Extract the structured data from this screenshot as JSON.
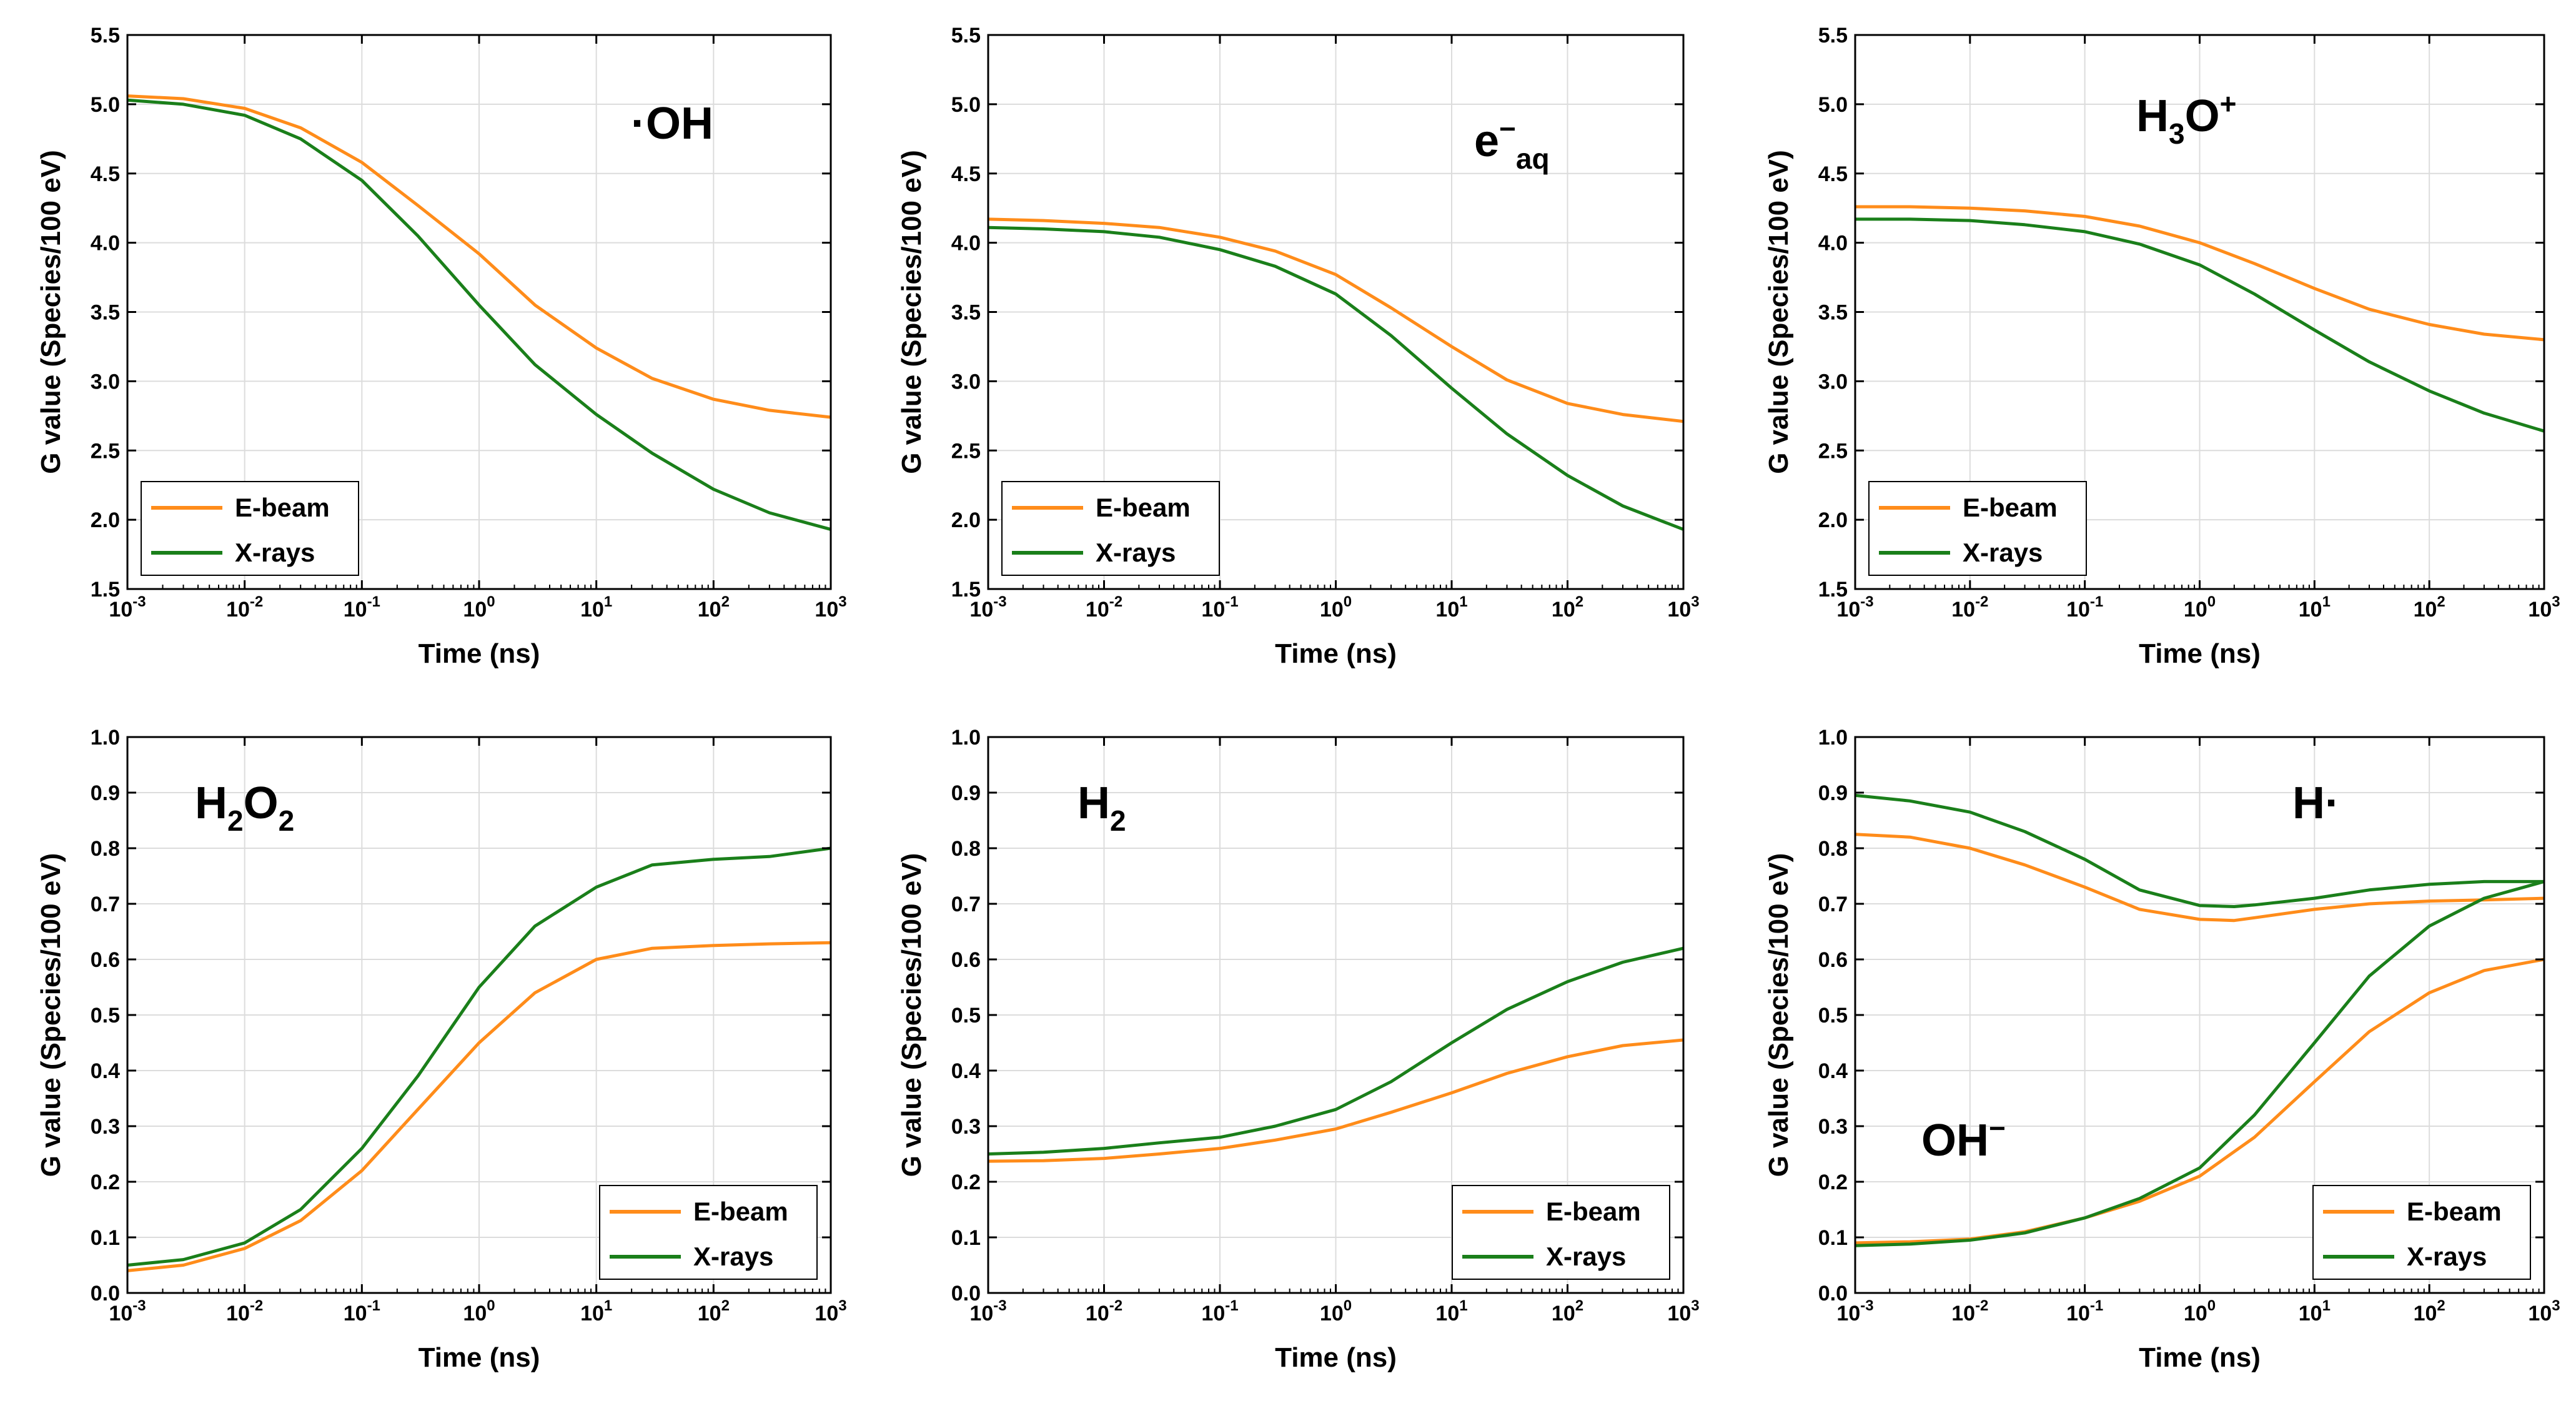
{
  "colors": {
    "ebeam": "#ff8c1a",
    "xrays": "#1a7f1a",
    "grid": "#dcdcdc",
    "axis": "#000000"
  },
  "chart_data": [
    {
      "type": "line",
      "title": "·OH",
      "label_parts": [
        {
          "t": "·OH",
          "s": "n"
        }
      ],
      "xlabel": "Time (ns)",
      "ylabel": "G value (Species/100 eV)",
      "xscale": "log",
      "xlim": [
        0.001,
        1000
      ],
      "ylim": [
        1.5,
        5.5
      ],
      "yticks": [
        "1.5",
        "2.0",
        "2.5",
        "3.0",
        "3.5",
        "4.0",
        "4.5",
        "5.0",
        "5.5"
      ],
      "xtick_base": "10",
      "xtick_exps": [
        "-3",
        "-2",
        "-1",
        "0",
        "1",
        "2",
        "3"
      ],
      "legend": "bottom-left",
      "grid": true,
      "series": [
        {
          "name": "E-beam",
          "color_key": "ebeam",
          "x": [
            0.001,
            0.003,
            0.01,
            0.03,
            0.1,
            0.3,
            1,
            3,
            10,
            30,
            100,
            300,
            1000
          ],
          "y": [
            5.06,
            5.04,
            4.97,
            4.83,
            4.58,
            4.27,
            3.92,
            3.55,
            3.24,
            3.02,
            2.87,
            2.79,
            2.74
          ]
        },
        {
          "name": "X-rays",
          "color_key": "xrays",
          "x": [
            0.001,
            0.003,
            0.01,
            0.03,
            0.1,
            0.3,
            1,
            3,
            10,
            30,
            100,
            300,
            1000
          ],
          "y": [
            5.03,
            5.0,
            4.92,
            4.75,
            4.45,
            4.05,
            3.55,
            3.12,
            2.76,
            2.48,
            2.22,
            2.05,
            1.93
          ]
        }
      ]
    },
    {
      "type": "line",
      "title": "e⁻aq",
      "label_parts": [
        {
          "t": "e",
          "s": "n"
        },
        {
          "t": "−",
          "s": "sup"
        },
        {
          "t": "aq",
          "s": "sub"
        }
      ],
      "xlabel": "Time (ns)",
      "ylabel": "G value (Species/100 eV)",
      "xscale": "log",
      "xlim": [
        0.001,
        1000
      ],
      "ylim": [
        1.5,
        5.5
      ],
      "yticks": [
        "1.5",
        "2.0",
        "2.5",
        "3.0",
        "3.5",
        "4.0",
        "4.5",
        "5.0",
        "5.5"
      ],
      "xtick_base": "10",
      "xtick_exps": [
        "-3",
        "-2",
        "-1",
        "0",
        "1",
        "2",
        "3"
      ],
      "legend": "bottom-left",
      "grid": true,
      "series": [
        {
          "name": "E-beam",
          "color_key": "ebeam",
          "x": [
            0.001,
            0.003,
            0.01,
            0.03,
            0.1,
            0.3,
            1,
            3,
            10,
            30,
            100,
            300,
            1000
          ],
          "y": [
            4.17,
            4.16,
            4.14,
            4.11,
            4.04,
            3.94,
            3.77,
            3.53,
            3.25,
            3.01,
            2.84,
            2.76,
            2.71
          ]
        },
        {
          "name": "X-rays",
          "color_key": "xrays",
          "x": [
            0.001,
            0.003,
            0.01,
            0.03,
            0.1,
            0.3,
            1,
            3,
            10,
            30,
            100,
            300,
            1000
          ],
          "y": [
            4.11,
            4.1,
            4.08,
            4.04,
            3.95,
            3.83,
            3.63,
            3.33,
            2.95,
            2.62,
            2.32,
            2.1,
            1.93
          ]
        }
      ]
    },
    {
      "type": "line",
      "title": "H₃O⁺",
      "label_parts": [
        {
          "t": "H",
          "s": "n"
        },
        {
          "t": "3",
          "s": "sub"
        },
        {
          "t": "O",
          "s": "n"
        },
        {
          "t": "+",
          "s": "sup"
        }
      ],
      "xlabel": "Time (ns)",
      "ylabel": "G value (Species/100 eV)",
      "xscale": "log",
      "xlim": [
        0.001,
        1000
      ],
      "ylim": [
        1.5,
        5.5
      ],
      "yticks": [
        "1.5",
        "2.0",
        "2.5",
        "3.0",
        "3.5",
        "4.0",
        "4.5",
        "5.0",
        "5.5"
      ],
      "xtick_base": "10",
      "xtick_exps": [
        "-3",
        "-2",
        "-1",
        "0",
        "1",
        "2",
        "3"
      ],
      "legend": "bottom-left",
      "grid": true,
      "series": [
        {
          "name": "E-beam",
          "color_key": "ebeam",
          "x": [
            0.001,
            0.003,
            0.01,
            0.03,
            0.1,
            0.3,
            1,
            3,
            10,
            30,
            100,
            300,
            1000
          ],
          "y": [
            4.26,
            4.26,
            4.25,
            4.23,
            4.19,
            4.12,
            4.0,
            3.85,
            3.67,
            3.52,
            3.41,
            3.34,
            3.3
          ]
        },
        {
          "name": "X-rays",
          "color_key": "xrays",
          "x": [
            0.001,
            0.003,
            0.01,
            0.03,
            0.1,
            0.3,
            1,
            3,
            10,
            30,
            100,
            300,
            1000
          ],
          "y": [
            4.17,
            4.17,
            4.16,
            4.13,
            4.08,
            3.99,
            3.84,
            3.63,
            3.37,
            3.14,
            2.93,
            2.77,
            2.64
          ]
        }
      ]
    },
    {
      "type": "line",
      "title": "H₂O₂",
      "label_parts": [
        {
          "t": "H",
          "s": "n"
        },
        {
          "t": "2",
          "s": "sub"
        },
        {
          "t": "O",
          "s": "n"
        },
        {
          "t": "2",
          "s": "sub"
        }
      ],
      "xlabel": "Time (ns)",
      "ylabel": "G value (Species/100 eV)",
      "xscale": "log",
      "xlim": [
        0.001,
        1000
      ],
      "ylim": [
        0.0,
        1.0
      ],
      "yticks": [
        "0.0",
        "0.1",
        "0.2",
        "0.3",
        "0.4",
        "0.5",
        "0.6",
        "0.7",
        "0.8",
        "0.9",
        "1.0"
      ],
      "xtick_base": "10",
      "xtick_exps": [
        "-3",
        "-2",
        "-1",
        "0",
        "1",
        "2",
        "3"
      ],
      "legend": "bottom-right",
      "grid": true,
      "series": [
        {
          "name": "E-beam",
          "color_key": "ebeam",
          "x": [
            0.001,
            0.003,
            0.01,
            0.03,
            0.1,
            0.3,
            1,
            3,
            10,
            30,
            100,
            300,
            1000
          ],
          "y": [
            0.04,
            0.05,
            0.08,
            0.13,
            0.22,
            0.33,
            0.45,
            0.54,
            0.6,
            0.62,
            0.625,
            0.628,
            0.63
          ]
        },
        {
          "name": "X-rays",
          "color_key": "xrays",
          "x": [
            0.001,
            0.003,
            0.01,
            0.03,
            0.1,
            0.3,
            1,
            3,
            10,
            30,
            100,
            300,
            1000
          ],
          "y": [
            0.05,
            0.06,
            0.09,
            0.15,
            0.26,
            0.39,
            0.55,
            0.66,
            0.73,
            0.77,
            0.78,
            0.785,
            0.8
          ]
        }
      ]
    },
    {
      "type": "line",
      "title": "H₂",
      "label_parts": [
        {
          "t": "H",
          "s": "n"
        },
        {
          "t": "2",
          "s": "sub"
        }
      ],
      "xlabel": "Time (ns)",
      "ylabel": "G value (Species/100 eV)",
      "xscale": "log",
      "xlim": [
        0.001,
        1000
      ],
      "ylim": [
        0.0,
        1.0
      ],
      "yticks": [
        "0.0",
        "0.1",
        "0.2",
        "0.3",
        "0.4",
        "0.5",
        "0.6",
        "0.7",
        "0.8",
        "0.9",
        "1.0"
      ],
      "xtick_base": "10",
      "xtick_exps": [
        "-3",
        "-2",
        "-1",
        "0",
        "1",
        "2",
        "3"
      ],
      "legend": "bottom-right",
      "grid": true,
      "series": [
        {
          "name": "E-beam",
          "color_key": "ebeam",
          "x": [
            0.001,
            0.003,
            0.01,
            0.03,
            0.1,
            0.3,
            1,
            3,
            10,
            30,
            100,
            300,
            1000
          ],
          "y": [
            0.237,
            0.238,
            0.242,
            0.25,
            0.26,
            0.275,
            0.295,
            0.325,
            0.36,
            0.395,
            0.425,
            0.445,
            0.455
          ]
        },
        {
          "name": "X-rays",
          "color_key": "xrays",
          "x": [
            0.001,
            0.003,
            0.01,
            0.03,
            0.1,
            0.3,
            1,
            3,
            10,
            30,
            100,
            300,
            1000
          ],
          "y": [
            0.25,
            0.253,
            0.26,
            0.27,
            0.28,
            0.3,
            0.33,
            0.38,
            0.45,
            0.51,
            0.56,
            0.595,
            0.62
          ]
        }
      ]
    },
    {
      "type": "line",
      "title": "H·",
      "label_parts": [
        {
          "t": "H·",
          "s": "n"
        }
      ],
      "extra_labels": [
        {
          "parts": [
            {
              "t": "OH",
              "s": "n"
            },
            {
              "t": "−",
              "s": "sup"
            }
          ]
        }
      ],
      "xlabel": "Time (ns)",
      "ylabel": "G value (Species/100 eV)",
      "xscale": "log",
      "xlim": [
        0.001,
        1000
      ],
      "ylim": [
        0.0,
        1.0
      ],
      "yticks": [
        "0.0",
        "0.1",
        "0.2",
        "0.3",
        "0.4",
        "0.5",
        "0.6",
        "0.7",
        "0.8",
        "0.9",
        "1.0"
      ],
      "xtick_base": "10",
      "xtick_exps": [
        "-3",
        "-2",
        "-1",
        "0",
        "1",
        "2",
        "3"
      ],
      "legend": "bottom-right",
      "grid": true,
      "series": [
        {
          "name": "E-beam",
          "color_key": "ebeam",
          "x": [
            0.001,
            0.003,
            0.01,
            0.03,
            0.1,
            0.3,
            1,
            2,
            3,
            10,
            30,
            100,
            300,
            1000
          ],
          "y": [
            0.825,
            0.82,
            0.8,
            0.77,
            0.73,
            0.69,
            0.672,
            0.67,
            0.675,
            0.69,
            0.7,
            0.705,
            0.707,
            0.71
          ]
        },
        {
          "name": "X-rays",
          "color_key": "xrays",
          "x": [
            0.001,
            0.003,
            0.01,
            0.03,
            0.1,
            0.3,
            1,
            2,
            3,
            10,
            30,
            100,
            300,
            1000
          ],
          "y": [
            0.895,
            0.885,
            0.865,
            0.83,
            0.78,
            0.725,
            0.697,
            0.695,
            0.698,
            0.71,
            0.725,
            0.735,
            0.74,
            0.74
          ]
        },
        {
          "name": "E-beam (OH⁻)",
          "color_key": "ebeam",
          "x": [
            0.001,
            0.003,
            0.01,
            0.03,
            0.1,
            0.3,
            1,
            3,
            10,
            30,
            100,
            300,
            1000
          ],
          "y": [
            0.09,
            0.092,
            0.097,
            0.11,
            0.135,
            0.165,
            0.21,
            0.28,
            0.38,
            0.47,
            0.54,
            0.58,
            0.6
          ]
        },
        {
          "name": "X-rays (OH⁻)",
          "color_key": "xrays",
          "x": [
            0.001,
            0.003,
            0.01,
            0.03,
            0.1,
            0.3,
            1,
            3,
            10,
            30,
            100,
            300,
            1000
          ],
          "y": [
            0.085,
            0.088,
            0.095,
            0.108,
            0.135,
            0.17,
            0.225,
            0.32,
            0.45,
            0.57,
            0.66,
            0.71,
            0.74
          ]
        }
      ]
    }
  ]
}
